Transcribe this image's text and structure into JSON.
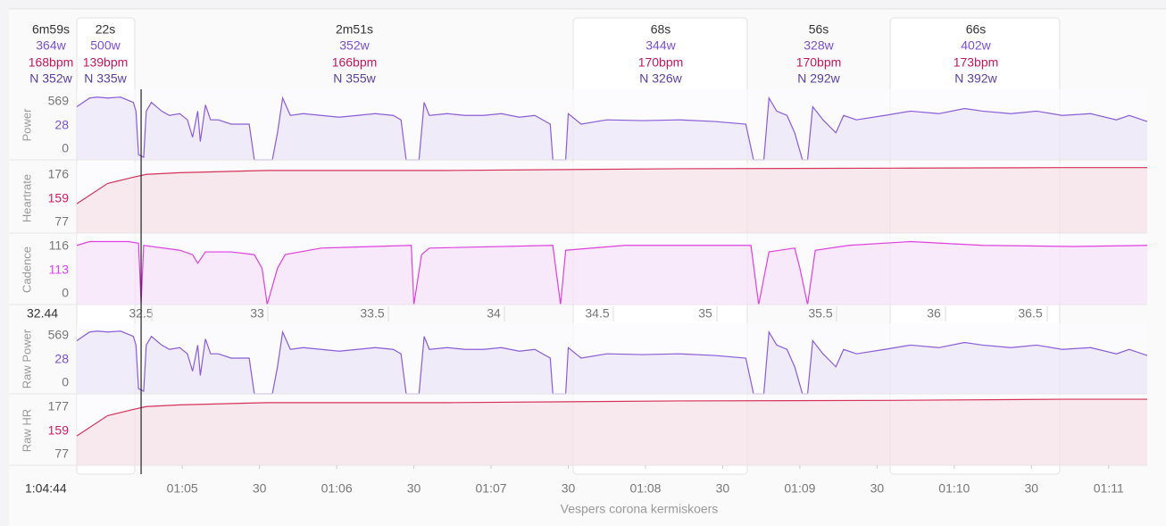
{
  "intervals": [
    {
      "duration": "6m59s",
      "power": "364w",
      "heartrate": "168bpm",
      "normalized": "N 352w"
    },
    {
      "duration": "22s",
      "power": "500w",
      "heartrate": "139bpm",
      "normalized": "N 335w"
    },
    {
      "duration": "2m51s",
      "power": "352w",
      "heartrate": "166bpm",
      "normalized": "N 355w"
    },
    {
      "duration": "68s",
      "power": "344w",
      "heartrate": "170bpm",
      "normalized": "N 326w"
    },
    {
      "duration": "56s",
      "power": "328w",
      "heartrate": "170bpm",
      "normalized": "N 292w"
    },
    {
      "duration": "66s",
      "power": "402w",
      "heartrate": "173bpm",
      "normalized": "N 392w"
    }
  ],
  "chart_data": [
    {
      "type": "line",
      "ylabel": "Power",
      "color": "#8a5cd8",
      "ylim": [
        0,
        640
      ],
      "max": 569,
      "current": 28,
      "min": 0,
      "x": [
        0,
        5,
        8,
        12,
        17,
        22,
        23,
        24,
        26,
        27,
        29,
        33,
        36,
        40,
        43,
        45,
        47,
        48,
        50,
        52,
        55,
        60,
        67,
        69,
        76,
        78,
        80,
        83,
        88,
        95,
        102,
        109,
        116,
        123,
        126,
        128,
        133,
        135,
        137,
        144,
        151,
        158,
        165,
        172,
        178,
        184,
        185,
        190,
        191,
        196,
        206,
        220,
        234,
        248,
        260,
        263,
        267,
        269,
        272,
        276,
        279,
        282,
        284,
        286,
        290,
        295,
        298,
        303,
        314,
        324,
        335,
        345,
        352,
        363,
        373,
        383,
        394,
        404,
        409,
        416
      ],
      "values": [
        482,
        561,
        569,
        561,
        569,
        521,
        442,
        47,
        24,
        442,
        521,
        442,
        403,
        419,
        363,
        205,
        442,
        166,
        498,
        363,
        363,
        324,
        324,
        0,
        0,
        245,
        561,
        403,
        419,
        403,
        387,
        403,
        419,
        403,
        363,
        0,
        0,
        521,
        403,
        419,
        403,
        403,
        419,
        387,
        403,
        324,
        0,
        0,
        419,
        324,
        363,
        356,
        363,
        348,
        324,
        0,
        0,
        561,
        442,
        403,
        245,
        0,
        0,
        482,
        363,
        245,
        403,
        363,
        403,
        442,
        419,
        466,
        442,
        419,
        442,
        403,
        419,
        363,
        403,
        348
      ]
    },
    {
      "type": "line",
      "ylabel": "Heartrate",
      "color": "#d6325a",
      "ylim": [
        60,
        185
      ],
      "max": 176,
      "current": 159,
      "min": 77,
      "x": [
        0,
        12,
        22,
        27,
        40,
        74,
        144,
        234,
        317,
        383,
        416
      ],
      "values": [
        112,
        148,
        159,
        164,
        167,
        171,
        171,
        174,
        175,
        176,
        176
      ]
    },
    {
      "type": "line",
      "ylabel": "Cadence",
      "color": "#e040e0",
      "ylim": [
        0,
        130
      ],
      "max": 116,
      "current": 113,
      "min": 0,
      "x": [
        0,
        5,
        12,
        20,
        24,
        25,
        26,
        40,
        45,
        47,
        50,
        60,
        69,
        72,
        74,
        78,
        81,
        95,
        130,
        131,
        134,
        137,
        185,
        188,
        190,
        213,
        262,
        265,
        269,
        279,
        281,
        284,
        287,
        300,
        324,
        352,
        387,
        416
      ],
      "values": [
        109,
        116,
        116,
        116,
        113,
        2,
        109,
        100,
        92,
        76,
        97,
        97,
        92,
        67,
        0,
        67,
        92,
        104,
        109,
        0,
        92,
        104,
        109,
        0,
        100,
        109,
        109,
        0,
        97,
        104,
        67,
        0,
        100,
        109,
        116,
        109,
        107,
        109
      ]
    },
    {
      "type": "line",
      "ylabel": "Raw Power",
      "color": "#8a5cd8",
      "ylim": [
        0,
        640
      ],
      "max": 569,
      "current": 28,
      "min": 0,
      "x": [
        0,
        5,
        8,
        12,
        17,
        22,
        23,
        24,
        26,
        27,
        29,
        33,
        36,
        40,
        43,
        45,
        47,
        48,
        50,
        52,
        55,
        60,
        67,
        69,
        76,
        78,
        80,
        83,
        88,
        95,
        102,
        109,
        116,
        123,
        126,
        128,
        133,
        135,
        137,
        144,
        151,
        158,
        165,
        172,
        178,
        184,
        185,
        190,
        191,
        196,
        206,
        220,
        234,
        248,
        260,
        263,
        267,
        269,
        272,
        276,
        279,
        282,
        284,
        286,
        290,
        295,
        298,
        303,
        314,
        324,
        335,
        345,
        352,
        363,
        373,
        383,
        394,
        404,
        409,
        416
      ],
      "values": [
        482,
        561,
        569,
        561,
        569,
        521,
        442,
        47,
        24,
        442,
        521,
        442,
        403,
        419,
        363,
        205,
        442,
        166,
        498,
        363,
        363,
        324,
        324,
        0,
        0,
        245,
        561,
        403,
        419,
        403,
        387,
        403,
        419,
        403,
        363,
        0,
        0,
        521,
        403,
        419,
        403,
        403,
        419,
        387,
        403,
        324,
        0,
        0,
        419,
        324,
        363,
        356,
        363,
        348,
        324,
        0,
        0,
        561,
        442,
        403,
        245,
        0,
        0,
        482,
        363,
        245,
        403,
        363,
        403,
        442,
        419,
        466,
        442,
        419,
        442,
        403,
        419,
        363,
        403,
        348
      ]
    },
    {
      "type": "line",
      "ylabel": "Raw HR",
      "color": "#d6325a",
      "ylim": [
        60,
        185
      ],
      "max": 177,
      "current": 159,
      "min": 77,
      "x": [
        0,
        12,
        22,
        27,
        40,
        74,
        144,
        234,
        317,
        383,
        416
      ],
      "values": [
        112,
        148,
        159,
        164,
        167,
        171,
        171,
        174,
        175,
        177,
        177
      ]
    }
  ],
  "distance_axis": {
    "cursor": 32.44,
    "ticks": [
      32.5,
      33,
      33.5,
      34,
      34.5,
      35,
      35.5,
      36,
      36.5
    ]
  },
  "time_axis": {
    "xlim": [
      0,
      416
    ],
    "title": "Vespers corona kermiskoers",
    "cursor": {
      "value": 25,
      "label": "1:04:44"
    },
    "xticks": [
      {
        "value": 41,
        "label": "01:05"
      },
      {
        "value": 71,
        "label": "30"
      },
      {
        "value": 101,
        "label": "01:06"
      },
      {
        "value": 131,
        "label": "30"
      },
      {
        "value": 161,
        "label": "01:07"
      },
      {
        "value": 191,
        "label": "30"
      },
      {
        "value": 221,
        "label": "01:08"
      },
      {
        "value": 251,
        "label": "30"
      },
      {
        "value": 281,
        "label": "01:09"
      },
      {
        "value": 311,
        "label": "30"
      },
      {
        "value": 341,
        "label": "01:10"
      },
      {
        "value": 371,
        "label": "30"
      },
      {
        "value": 401,
        "label": "01:11"
      }
    ]
  }
}
